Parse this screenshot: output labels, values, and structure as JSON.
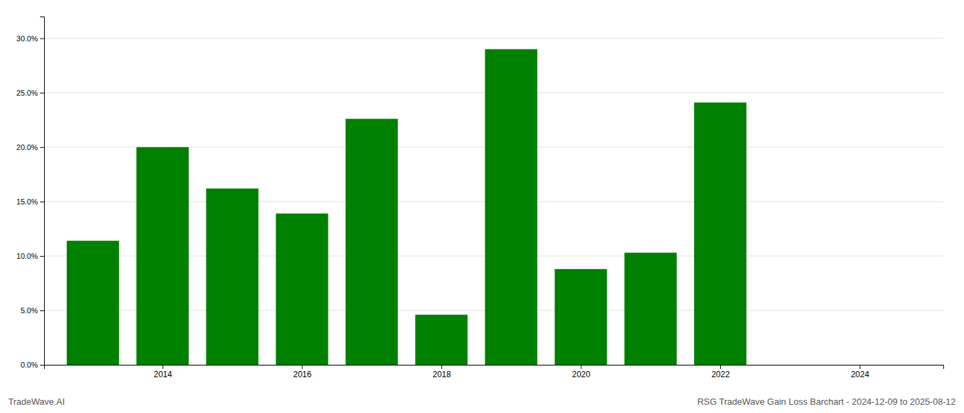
{
  "chart_data": {
    "type": "bar",
    "title": "RSG TradeWave Gain Loss Barchart - 2024-12-09 to 2025-08-12",
    "annotations": [
      "TradeWave.AI"
    ],
    "x": [
      2013,
      2014,
      2015,
      2016,
      2017,
      2018,
      2019,
      2020,
      2021,
      2022
    ],
    "values": [
      0.114,
      0.2,
      0.162,
      0.139,
      0.226,
      0.046,
      0.29,
      0.088,
      0.103,
      0.241
    ],
    "color": "#008000",
    "xlim": [
      2012.3,
      2025.2
    ],
    "xticks": [
      2014,
      2016,
      2018,
      2020,
      2022,
      2024
    ],
    "ylim": [
      0.0,
      0.32
    ],
    "yticks": [
      {
        "value": 0.0,
        "label": "0.0%"
      },
      {
        "value": 0.05,
        "label": "5.0%"
      },
      {
        "value": 0.1,
        "label": "10.0%"
      },
      {
        "value": 0.15,
        "label": "15.0%"
      },
      {
        "value": 0.2,
        "label": "20.0%"
      },
      {
        "value": 0.25,
        "label": "25.0%"
      },
      {
        "value": 0.3,
        "label": "30.0%"
      }
    ],
    "grid": true
  }
}
